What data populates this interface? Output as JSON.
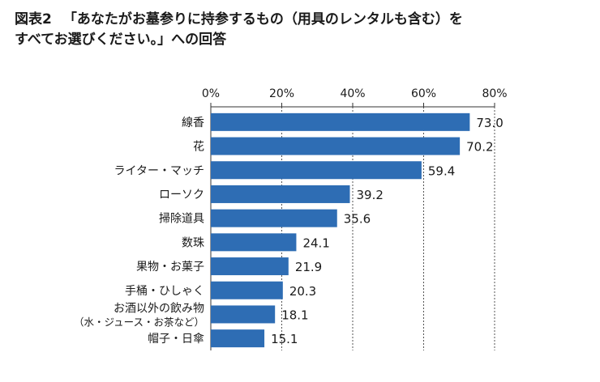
{
  "header": {
    "figure_label": "図表2",
    "title_line1": "「あなたがお墓参りに持参するもの（用具のレンタルも含む）を",
    "title_line2": "すべてお選びください。」への回答"
  },
  "colors": {
    "bar": "#2e6db4",
    "axis": "#333333",
    "grid": "#555555"
  },
  "chart_data": {
    "type": "bar",
    "orientation": "horizontal",
    "title": "「あなたがお墓参りに持参するもの（用具のレンタルも含む）をすべてお選びください。」への回答",
    "categories": [
      [
        "線香"
      ],
      [
        "花"
      ],
      [
        "ライター・マッチ"
      ],
      [
        "ローソク"
      ],
      [
        "掃除道具"
      ],
      [
        "数珠"
      ],
      [
        "果物・お菓子"
      ],
      [
        "手桶・ひしゃく"
      ],
      [
        "お酒以外の飲み物",
        "（水・ジュース・お茶など）"
      ],
      [
        "帽子・日傘"
      ]
    ],
    "values": [
      73.0,
      70.2,
      59.4,
      39.2,
      35.6,
      24.1,
      21.9,
      20.3,
      18.1,
      15.1
    ],
    "value_labels": [
      "73.0",
      "70.2",
      "59.4",
      "39.2",
      "35.6",
      "24.1",
      "21.9",
      "20.3",
      "18.1",
      "15.1"
    ],
    "xlim": [
      0,
      80
    ],
    "xticks": [
      0,
      20,
      40,
      60,
      80
    ],
    "xtick_labels": [
      "0%",
      "20%",
      "40%",
      "60%",
      "80%"
    ],
    "xaxis_position": "top",
    "grid": "vertical dotted",
    "legend": "none"
  }
}
